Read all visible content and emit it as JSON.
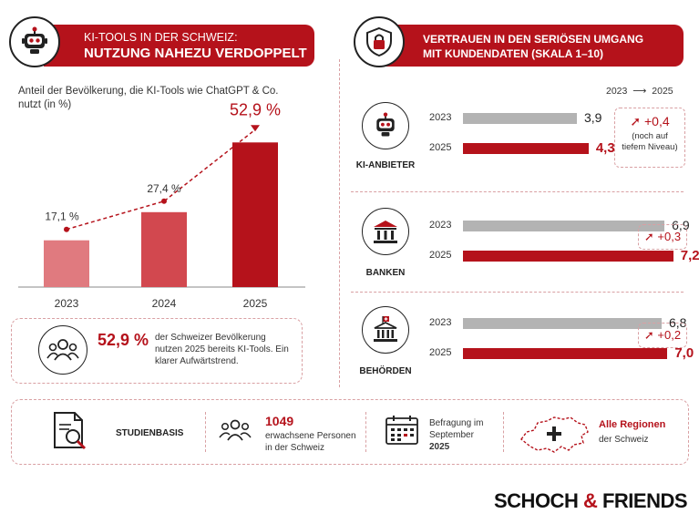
{
  "left": {
    "banner_line1": "KI-Tools in der Schweiz:",
    "banner_line2": "Nutzung nahezu verdoppelt",
    "subtitle": "Anteil der Bevölkerung, die KI-Tools wie ChatGPT & Co. nutzt (in %)"
  },
  "right": {
    "banner_line1": "Vertrauen in den seriösen Umgang",
    "banner_line2": "mit Kundendaten (Skala 1–10)",
    "legend_from": "2023",
    "legend_arrow": "⟶",
    "legend_to": "2025"
  },
  "chart_data": [
    {
      "type": "bar",
      "categories": [
        "2023",
        "2024",
        "2025"
      ],
      "values": [
        17.1,
        27.4,
        52.9
      ],
      "value_labels": [
        "17,1 %",
        "27,4 %",
        "52,9 %"
      ],
      "ylim": [
        0,
        60
      ],
      "colors": [
        "#e07a7f",
        "#d2484f",
        "#b5121b"
      ]
    },
    {
      "type": "bar",
      "orientation": "horizontal",
      "scale": [
        1,
        10
      ],
      "groups": [
        {
          "label": "KI-ANBIETER",
          "icon": "robot-icon",
          "values": [
            {
              "year": "2023",
              "value": 3.9,
              "label": "3,9"
            },
            {
              "year": "2025",
              "value": 4.3,
              "label": "4,3"
            }
          ],
          "delta": "+0,4",
          "note": "(noch auf tiefem Niveau)"
        },
        {
          "label": "BANKEN",
          "icon": "bank-icon",
          "values": [
            {
              "year": "2023",
              "value": 6.9,
              "label": "6,9"
            },
            {
              "year": "2025",
              "value": 7.2,
              "label": "7,2"
            }
          ],
          "delta": "+0,3",
          "note": ""
        },
        {
          "label": "BEHÖRDEN",
          "icon": "government-building-icon",
          "values": [
            {
              "year": "2023",
              "value": 6.8,
              "label": "6,8"
            },
            {
              "year": "2025",
              "value": 7.0,
              "label": "7,0"
            }
          ],
          "delta": "+0,2",
          "note": ""
        }
      ],
      "colors": {
        "2023": "#b3b3b3",
        "2025": "#b5121b"
      }
    }
  ],
  "summary": {
    "value": "52,9 %",
    "text": "der Schweizer Bevölkerung nutzen 2025 bereits KI-Tools. Ein klarer Aufwärtstrend."
  },
  "footer": {
    "basis_label": "STUDIENBASIS",
    "people_count": "1049",
    "people_text": "erwachsene Personen in der Schweiz",
    "survey_text": "Befragung im September",
    "survey_year": "2025",
    "regions_title": "Alle Regionen",
    "regions_text": "der Schweiz"
  },
  "brand": {
    "part1": "SCHOCH",
    "amp": "&",
    "part2": "FRIENDS"
  }
}
